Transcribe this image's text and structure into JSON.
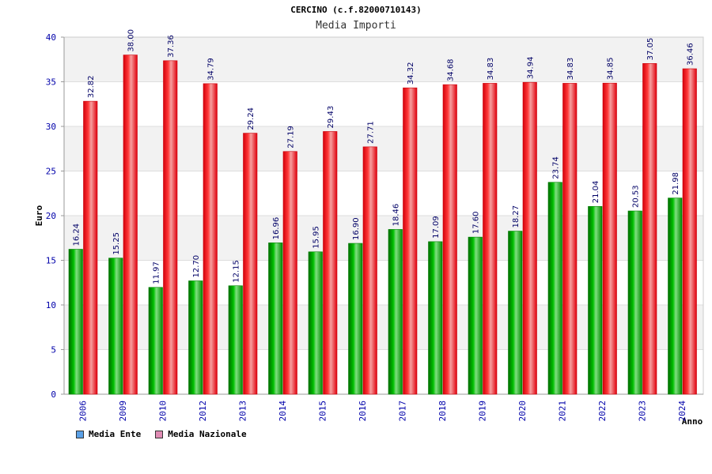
{
  "header": {
    "title": "CERCINO (c.f.82000710143)",
    "subtitle": "Media Importi"
  },
  "chart_data": {
    "type": "bar",
    "title": "CERCINO (c.f.82000710143)",
    "subtitle": "Media Importi",
    "xlabel": "Anno",
    "ylabel": "Euro",
    "ylim": [
      0,
      40
    ],
    "yticks": [
      0,
      5,
      10,
      15,
      20,
      25,
      30,
      35,
      40
    ],
    "grid": true,
    "legend_position": "bottom-left",
    "categories": [
      "2006",
      "2009",
      "2010",
      "2012",
      "2013",
      "2014",
      "2015",
      "2016",
      "2017",
      "2018",
      "2019",
      "2020",
      "2021",
      "2022",
      "2023",
      "2024"
    ],
    "series": [
      {
        "name": "Media Ente",
        "color": "#00a000",
        "values": [
          16.24,
          15.25,
          11.97,
          12.7,
          12.15,
          16.96,
          15.95,
          16.9,
          18.46,
          17.09,
          17.6,
          18.27,
          23.74,
          21.04,
          20.53,
          21.98
        ]
      },
      {
        "name": "Media Nazionale",
        "color": "#e8000e",
        "values": [
          32.82,
          38.0,
          37.36,
          34.79,
          29.24,
          27.19,
          29.43,
          27.71,
          34.32,
          34.68,
          34.83,
          34.94,
          34.83,
          34.85,
          37.05,
          36.46
        ]
      }
    ]
  },
  "legend": [
    {
      "label": "Media Ente",
      "color": "#5aa0e6"
    },
    {
      "label": "Media Nazionale",
      "color": "#e08cb4"
    }
  ]
}
